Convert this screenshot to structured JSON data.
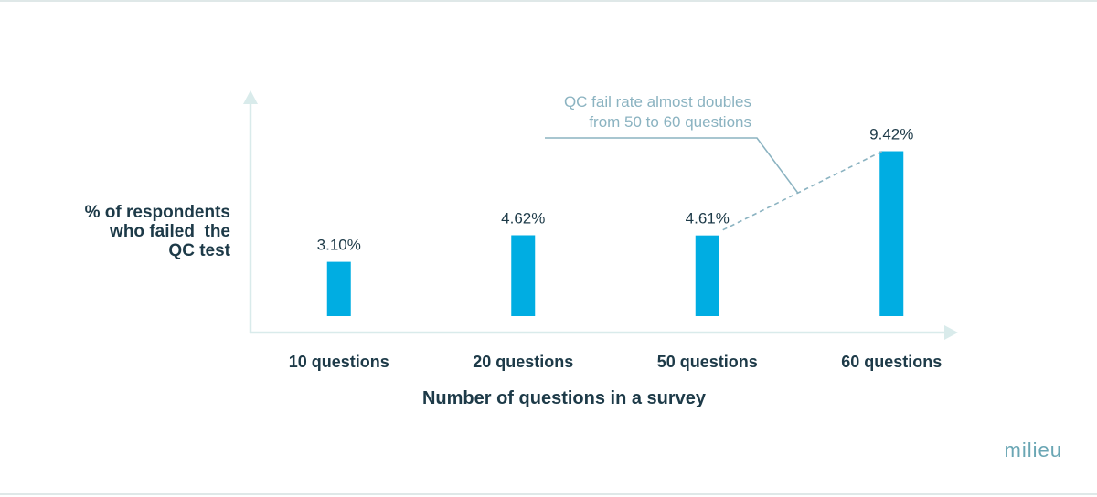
{
  "chart_data": {
    "type": "bar",
    "title": "",
    "xlabel": "Number of questions in a survey",
    "ylabel_lines": [
      "% of respondents",
      "who failed  the",
      "QC test"
    ],
    "categories": [
      "10 questions",
      "20 questions",
      "50 questions",
      "60 questions"
    ],
    "values": [
      3.1,
      4.62,
      4.61,
      9.42
    ],
    "value_labels": [
      "3.10%",
      "4.62%",
      "4.61%",
      "9.42%"
    ],
    "unit": "%",
    "ylim": [
      0,
      10.7
    ],
    "grid": false,
    "annotation": {
      "lines": [
        "QC fail rate almost doubles",
        "from 50 to 60 questions"
      ],
      "from_category": "50 questions",
      "to_category": "60 questions"
    }
  },
  "colors": {
    "bar": "#00ade2",
    "axis": "#d9ebeb",
    "text_dark": "#1d3a48",
    "annotation": "#8bb3c1",
    "brand": "#6aa6b4"
  },
  "brand": "milieu"
}
